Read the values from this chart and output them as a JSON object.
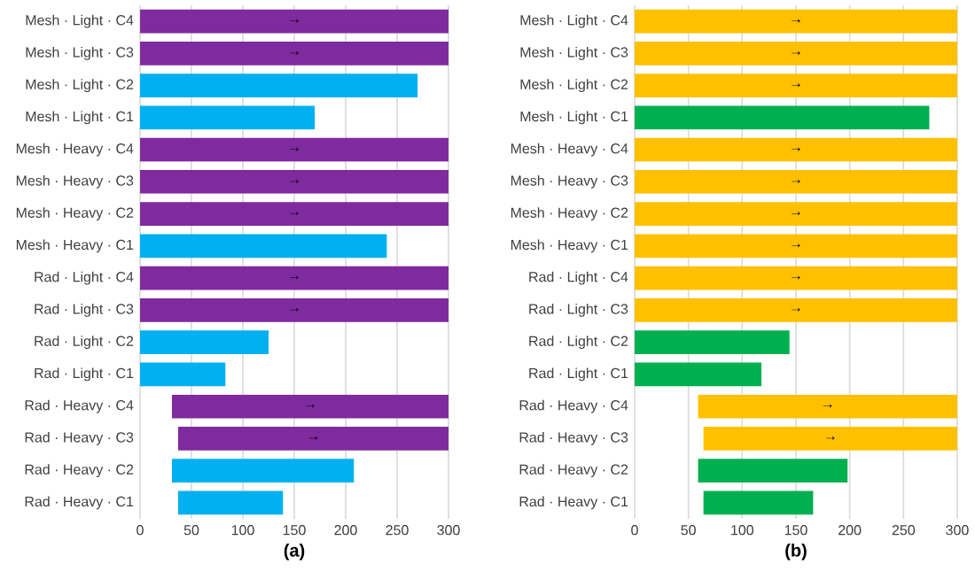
{
  "chart_data": [
    {
      "type": "bar",
      "orientation": "horizontal",
      "xlabel": "(a)",
      "categories": [
        "Mesh · Light · C4",
        "Mesh · Light · C3",
        "Mesh · Light · C2",
        "Mesh · Light · C1",
        "Mesh · Heavy · C4",
        "Mesh · Heavy · C3",
        "Mesh · Heavy · C2",
        "Mesh · Heavy · C1",
        "Rad · Light · C4",
        "Rad · Light · C3",
        "Rad · Light · C2",
        "Rad · Light · C1",
        "Rad · Heavy · C4",
        "Rad · Heavy · C3",
        "Rad · Heavy · C2",
        "Rad · Heavy · C1"
      ],
      "base": [
        0,
        0,
        0,
        0,
        0,
        0,
        0,
        0,
        0,
        0,
        0,
        0,
        31,
        37,
        31,
        37
      ],
      "values": [
        300,
        300,
        270,
        170,
        300,
        300,
        300,
        240,
        300,
        300,
        125,
        83,
        269,
        263,
        177,
        102
      ],
      "colors": [
        "#7f2a9e",
        "#7f2a9e",
        "#00b0f0",
        "#00b0f0",
        "#7f2a9e",
        "#7f2a9e",
        "#7f2a9e",
        "#00b0f0",
        "#7f2a9e",
        "#7f2a9e",
        "#00b0f0",
        "#00b0f0",
        "#7f2a9e",
        "#7f2a9e",
        "#00b0f0",
        "#00b0f0"
      ],
      "value_labels": [
        "→",
        "→",
        null,
        null,
        "→",
        "→",
        "→",
        null,
        "→",
        "→",
        null,
        null,
        "→",
        "→",
        null,
        null
      ],
      "xlim": [
        0,
        300
      ],
      "xticks": [
        0,
        50,
        100,
        150,
        200,
        250,
        300
      ],
      "grid": "x"
    },
    {
      "type": "bar",
      "orientation": "horizontal",
      "xlabel": "(b)",
      "categories": [
        "Mesh · Light · C4",
        "Mesh · Light · C3",
        "Mesh · Light · C2",
        "Mesh · Light · C1",
        "Mesh · Heavy · C4",
        "Mesh · Heavy · C3",
        "Mesh · Heavy · C2",
        "Mesh · Heavy · C1",
        "Rad · Light · C4",
        "Rad · Light · C3",
        "Rad · Light · C2",
        "Rad · Light · C1",
        "Rad · Heavy · C4",
        "Rad · Heavy · C3",
        "Rad · Heavy · C2",
        "Rad · Heavy · C1"
      ],
      "base": [
        0,
        0,
        0,
        0,
        0,
        0,
        0,
        0,
        0,
        0,
        0,
        0,
        59,
        64,
        59,
        64
      ],
      "values": [
        300,
        300,
        300,
        274,
        300,
        300,
        300,
        300,
        300,
        300,
        144,
        118,
        241,
        236,
        139,
        102
      ],
      "colors": [
        "#ffc000",
        "#ffc000",
        "#ffc000",
        "#00b050",
        "#ffc000",
        "#ffc000",
        "#ffc000",
        "#ffc000",
        "#ffc000",
        "#ffc000",
        "#00b050",
        "#00b050",
        "#ffc000",
        "#ffc000",
        "#00b050",
        "#00b050"
      ],
      "value_labels": [
        "→",
        "→",
        "→",
        null,
        "→",
        "→",
        "→",
        "→",
        "→",
        "→",
        null,
        null,
        "→",
        "→",
        null,
        null
      ],
      "xlim": [
        0,
        300
      ],
      "xticks": [
        0,
        50,
        100,
        150,
        200,
        250,
        300
      ],
      "grid": "x"
    }
  ]
}
